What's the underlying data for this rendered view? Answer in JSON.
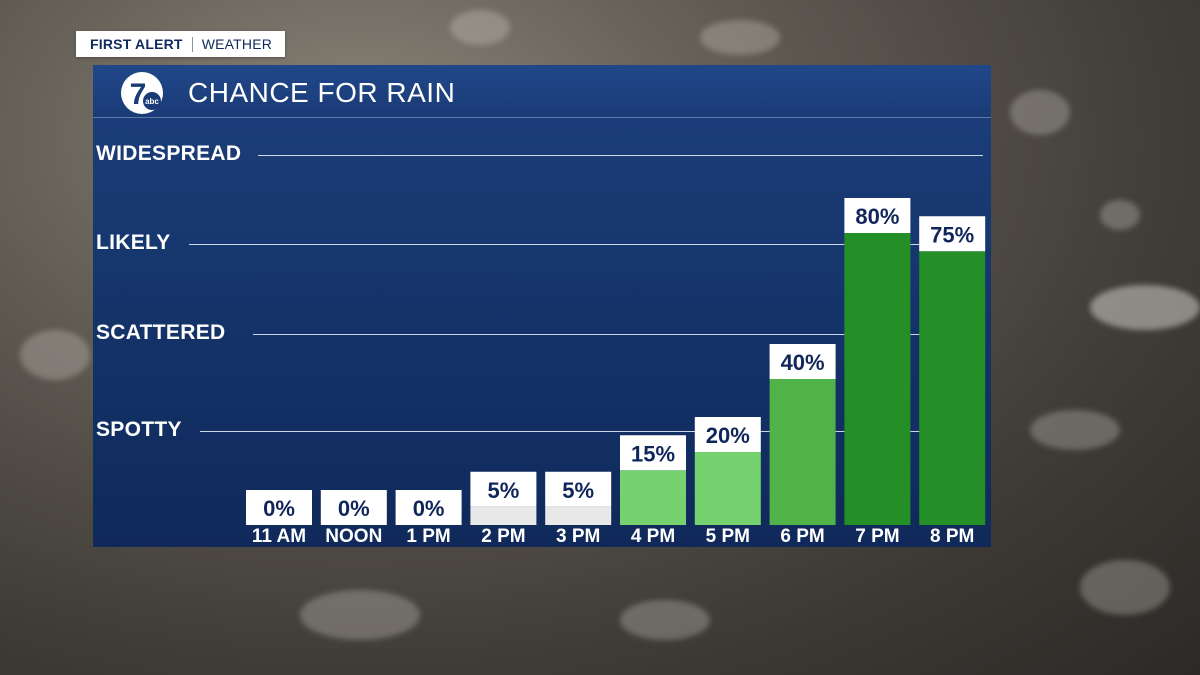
{
  "brand": {
    "first_alert": "FIRST ALERT",
    "weather": "WEATHER"
  },
  "header": {
    "title": "CHANCE FOR RAIN",
    "logo_text": "7",
    "logo_sub": "abc"
  },
  "categories": [
    {
      "label": "WIDESPREAD",
      "level": 100
    },
    {
      "label": "LIKELY",
      "level": 70
    },
    {
      "label": "SCATTERED",
      "level": 40
    },
    {
      "label": "SPOTTY",
      "level": 10
    }
  ],
  "chart_data": {
    "type": "bar",
    "title": "CHANCE FOR RAIN",
    "categories": [
      "11 AM",
      "NOON",
      "1 PM",
      "2 PM",
      "3 PM",
      "4 PM",
      "5 PM",
      "6 PM",
      "7 PM",
      "8 PM"
    ],
    "values": [
      0,
      0,
      0,
      5,
      5,
      15,
      20,
      40,
      80,
      75
    ],
    "value_labels": [
      "0%",
      "0%",
      "0%",
      "5%",
      "5%",
      "15%",
      "20%",
      "40%",
      "80%",
      "75%"
    ],
    "unit": "%",
    "grid": true,
    "bar_colors": [
      "#e8e8e8",
      "#e8e8e8",
      "#e8e8e8",
      "#e8e8e8",
      "#e8e8e8",
      "#76d16f",
      "#76d16f",
      "#4fb34a",
      "#238f26",
      "#238f26"
    ]
  },
  "colors": {
    "panel": "#15356c",
    "header": "#1f4283",
    "label_text": "#10255a",
    "light_green": "#76d16f",
    "mid_green": "#4fb34a",
    "dark_green": "#238f26",
    "low_gray": "#e8e8e8"
  }
}
